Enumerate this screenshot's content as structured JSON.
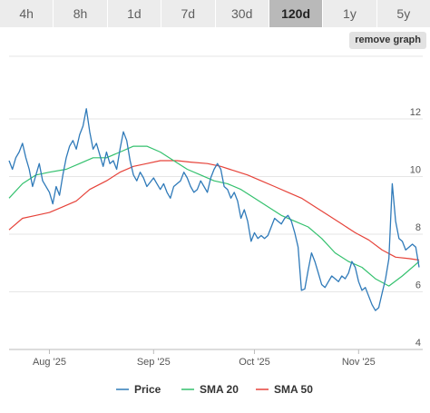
{
  "tabs": [
    {
      "label": "4h",
      "active": false
    },
    {
      "label": "8h",
      "active": false
    },
    {
      "label": "1d",
      "active": false
    },
    {
      "label": "7d",
      "active": false
    },
    {
      "label": "30d",
      "active": false
    },
    {
      "label": "120d",
      "active": true
    },
    {
      "label": "1y",
      "active": false
    },
    {
      "label": "5y",
      "active": false
    }
  ],
  "remove_graph_label": "remove graph",
  "chart_data": {
    "type": "line",
    "x_range": [
      "2025-07-20",
      "2025-11-19"
    ],
    "ylim": [
      4,
      13
    ],
    "yticks": [
      4,
      6,
      8,
      10,
      12
    ],
    "xticks": [
      {
        "date": "2025-08-01",
        "label": "Aug '25"
      },
      {
        "date": "2025-09-01",
        "label": "Sep '25"
      },
      {
        "date": "2025-10-01",
        "label": "Oct '25"
      },
      {
        "date": "2025-11-01",
        "label": "Nov '25"
      }
    ],
    "grid": "horizontal",
    "legend_position": "bottom",
    "series": [
      {
        "name": "Price",
        "color": "#2f7ab9",
        "points": [
          [
            "2025-07-20",
            10.3
          ],
          [
            "2025-07-21",
            10.0
          ],
          [
            "2025-07-22",
            10.4
          ],
          [
            "2025-07-23",
            10.6
          ],
          [
            "2025-07-24",
            10.9
          ],
          [
            "2025-07-25",
            10.4
          ],
          [
            "2025-07-26",
            10.0
          ],
          [
            "2025-07-27",
            9.4
          ],
          [
            "2025-07-28",
            9.8
          ],
          [
            "2025-07-29",
            10.2
          ],
          [
            "2025-07-30",
            9.6
          ],
          [
            "2025-08-01",
            9.2
          ],
          [
            "2025-08-02",
            8.8
          ],
          [
            "2025-08-03",
            9.4
          ],
          [
            "2025-08-04",
            9.1
          ],
          [
            "2025-08-05",
            9.8
          ],
          [
            "2025-08-06",
            10.4
          ],
          [
            "2025-08-07",
            10.8
          ],
          [
            "2025-08-08",
            11.0
          ],
          [
            "2025-08-09",
            10.7
          ],
          [
            "2025-08-10",
            11.2
          ],
          [
            "2025-08-11",
            11.5
          ],
          [
            "2025-08-12",
            12.1
          ],
          [
            "2025-08-13",
            11.3
          ],
          [
            "2025-08-14",
            10.7
          ],
          [
            "2025-08-15",
            10.9
          ],
          [
            "2025-08-16",
            10.5
          ],
          [
            "2025-08-17",
            10.1
          ],
          [
            "2025-08-18",
            10.6
          ],
          [
            "2025-08-19",
            10.2
          ],
          [
            "2025-08-20",
            10.3
          ],
          [
            "2025-08-21",
            10.0
          ],
          [
            "2025-08-22",
            10.7
          ],
          [
            "2025-08-23",
            11.3
          ],
          [
            "2025-08-24",
            11.0
          ],
          [
            "2025-08-25",
            10.3
          ],
          [
            "2025-08-26",
            9.8
          ],
          [
            "2025-08-27",
            9.6
          ],
          [
            "2025-08-28",
            9.9
          ],
          [
            "2025-08-29",
            9.7
          ],
          [
            "2025-08-30",
            9.4
          ],
          [
            "2025-09-01",
            9.7
          ],
          [
            "2025-09-02",
            9.5
          ],
          [
            "2025-09-03",
            9.3
          ],
          [
            "2025-09-04",
            9.5
          ],
          [
            "2025-09-05",
            9.2
          ],
          [
            "2025-09-06",
            9.0
          ],
          [
            "2025-09-07",
            9.4
          ],
          [
            "2025-09-08",
            9.5
          ],
          [
            "2025-09-09",
            9.6
          ],
          [
            "2025-09-10",
            9.9
          ],
          [
            "2025-09-11",
            9.7
          ],
          [
            "2025-09-12",
            9.4
          ],
          [
            "2025-09-13",
            9.2
          ],
          [
            "2025-09-14",
            9.3
          ],
          [
            "2025-09-15",
            9.6
          ],
          [
            "2025-09-16",
            9.4
          ],
          [
            "2025-09-17",
            9.2
          ],
          [
            "2025-09-18",
            9.7
          ],
          [
            "2025-09-19",
            10.0
          ],
          [
            "2025-09-20",
            10.2
          ],
          [
            "2025-09-21",
            10.0
          ],
          [
            "2025-09-22",
            9.4
          ],
          [
            "2025-09-23",
            9.3
          ],
          [
            "2025-09-24",
            9.0
          ],
          [
            "2025-09-25",
            9.2
          ],
          [
            "2025-09-26",
            8.9
          ],
          [
            "2025-09-27",
            8.3
          ],
          [
            "2025-09-28",
            8.6
          ],
          [
            "2025-09-29",
            8.2
          ],
          [
            "2025-09-30",
            7.5
          ],
          [
            "2025-10-01",
            7.8
          ],
          [
            "2025-10-02",
            7.6
          ],
          [
            "2025-10-03",
            7.7
          ],
          [
            "2025-10-04",
            7.6
          ],
          [
            "2025-10-05",
            7.7
          ],
          [
            "2025-10-06",
            8.0
          ],
          [
            "2025-10-07",
            8.3
          ],
          [
            "2025-10-08",
            8.2
          ],
          [
            "2025-10-09",
            8.1
          ],
          [
            "2025-10-10",
            8.3
          ],
          [
            "2025-10-11",
            8.4
          ],
          [
            "2025-10-12",
            8.2
          ],
          [
            "2025-10-13",
            7.8
          ],
          [
            "2025-10-14",
            7.3
          ],
          [
            "2025-10-15",
            5.8
          ],
          [
            "2025-10-16",
            5.85
          ],
          [
            "2025-10-17",
            6.5
          ],
          [
            "2025-10-18",
            7.1
          ],
          [
            "2025-10-19",
            6.8
          ],
          [
            "2025-10-20",
            6.4
          ],
          [
            "2025-10-21",
            6.0
          ],
          [
            "2025-10-22",
            5.9
          ],
          [
            "2025-10-23",
            6.1
          ],
          [
            "2025-10-24",
            6.3
          ],
          [
            "2025-10-25",
            6.2
          ],
          [
            "2025-10-26",
            6.1
          ],
          [
            "2025-10-27",
            6.3
          ],
          [
            "2025-10-28",
            6.2
          ],
          [
            "2025-10-29",
            6.4
          ],
          [
            "2025-10-30",
            6.8
          ],
          [
            "2025-10-31",
            6.6
          ],
          [
            "2025-11-01",
            6.1
          ],
          [
            "2025-11-02",
            5.8
          ],
          [
            "2025-11-03",
            5.9
          ],
          [
            "2025-11-04",
            5.6
          ],
          [
            "2025-11-05",
            5.3
          ],
          [
            "2025-11-06",
            5.1
          ],
          [
            "2025-11-07",
            5.2
          ],
          [
            "2025-11-08",
            5.7
          ],
          [
            "2025-11-09",
            6.2
          ],
          [
            "2025-11-10",
            6.9
          ],
          [
            "2025-11-11",
            9.5
          ],
          [
            "2025-11-12",
            8.2
          ],
          [
            "2025-11-13",
            7.6
          ],
          [
            "2025-11-14",
            7.5
          ],
          [
            "2025-11-15",
            7.2
          ],
          [
            "2025-11-16",
            7.3
          ],
          [
            "2025-11-17",
            7.4
          ],
          [
            "2025-11-18",
            7.3
          ],
          [
            "2025-11-19",
            6.6
          ]
        ]
      },
      {
        "name": "SMA 20",
        "color": "#34c16e",
        "points": [
          [
            "2025-07-20",
            9.0
          ],
          [
            "2025-07-24",
            9.5
          ],
          [
            "2025-07-28",
            9.8
          ],
          [
            "2025-08-01",
            9.9
          ],
          [
            "2025-08-06",
            10.0
          ],
          [
            "2025-08-10",
            10.2
          ],
          [
            "2025-08-14",
            10.4
          ],
          [
            "2025-08-18",
            10.4
          ],
          [
            "2025-08-22",
            10.6
          ],
          [
            "2025-08-26",
            10.8
          ],
          [
            "2025-08-30",
            10.8
          ],
          [
            "2025-09-03",
            10.6
          ],
          [
            "2025-09-07",
            10.3
          ],
          [
            "2025-09-11",
            10.0
          ],
          [
            "2025-09-15",
            9.8
          ],
          [
            "2025-09-19",
            9.6
          ],
          [
            "2025-09-23",
            9.5
          ],
          [
            "2025-09-27",
            9.3
          ],
          [
            "2025-10-01",
            9.0
          ],
          [
            "2025-10-05",
            8.7
          ],
          [
            "2025-10-09",
            8.4
          ],
          [
            "2025-10-13",
            8.2
          ],
          [
            "2025-10-17",
            8.0
          ],
          [
            "2025-10-21",
            7.6
          ],
          [
            "2025-10-25",
            7.1
          ],
          [
            "2025-10-29",
            6.8
          ],
          [
            "2025-11-02",
            6.6
          ],
          [
            "2025-11-06",
            6.2
          ],
          [
            "2025-11-10",
            5.95
          ],
          [
            "2025-11-14",
            6.3
          ],
          [
            "2025-11-19",
            6.8
          ]
        ]
      },
      {
        "name": "SMA 50",
        "color": "#e6433a",
        "points": [
          [
            "2025-07-20",
            7.9
          ],
          [
            "2025-07-24",
            8.3
          ],
          [
            "2025-07-28",
            8.4
          ],
          [
            "2025-08-01",
            8.5
          ],
          [
            "2025-08-05",
            8.7
          ],
          [
            "2025-08-09",
            8.9
          ],
          [
            "2025-08-13",
            9.3
          ],
          [
            "2025-08-18",
            9.6
          ],
          [
            "2025-08-22",
            9.9
          ],
          [
            "2025-08-26",
            10.1
          ],
          [
            "2025-08-30",
            10.2
          ],
          [
            "2025-09-03",
            10.3
          ],
          [
            "2025-09-08",
            10.3
          ],
          [
            "2025-09-12",
            10.25
          ],
          [
            "2025-09-17",
            10.2
          ],
          [
            "2025-09-21",
            10.1
          ],
          [
            "2025-09-25",
            9.95
          ],
          [
            "2025-09-29",
            9.8
          ],
          [
            "2025-10-03",
            9.6
          ],
          [
            "2025-10-07",
            9.4
          ],
          [
            "2025-10-11",
            9.2
          ],
          [
            "2025-10-15",
            9.0
          ],
          [
            "2025-10-19",
            8.7
          ],
          [
            "2025-10-23",
            8.4
          ],
          [
            "2025-10-27",
            8.1
          ],
          [
            "2025-10-31",
            7.8
          ],
          [
            "2025-11-04",
            7.55
          ],
          [
            "2025-11-08",
            7.2
          ],
          [
            "2025-11-12",
            6.95
          ],
          [
            "2025-11-16",
            6.9
          ],
          [
            "2025-11-19",
            6.85
          ]
        ]
      }
    ]
  }
}
